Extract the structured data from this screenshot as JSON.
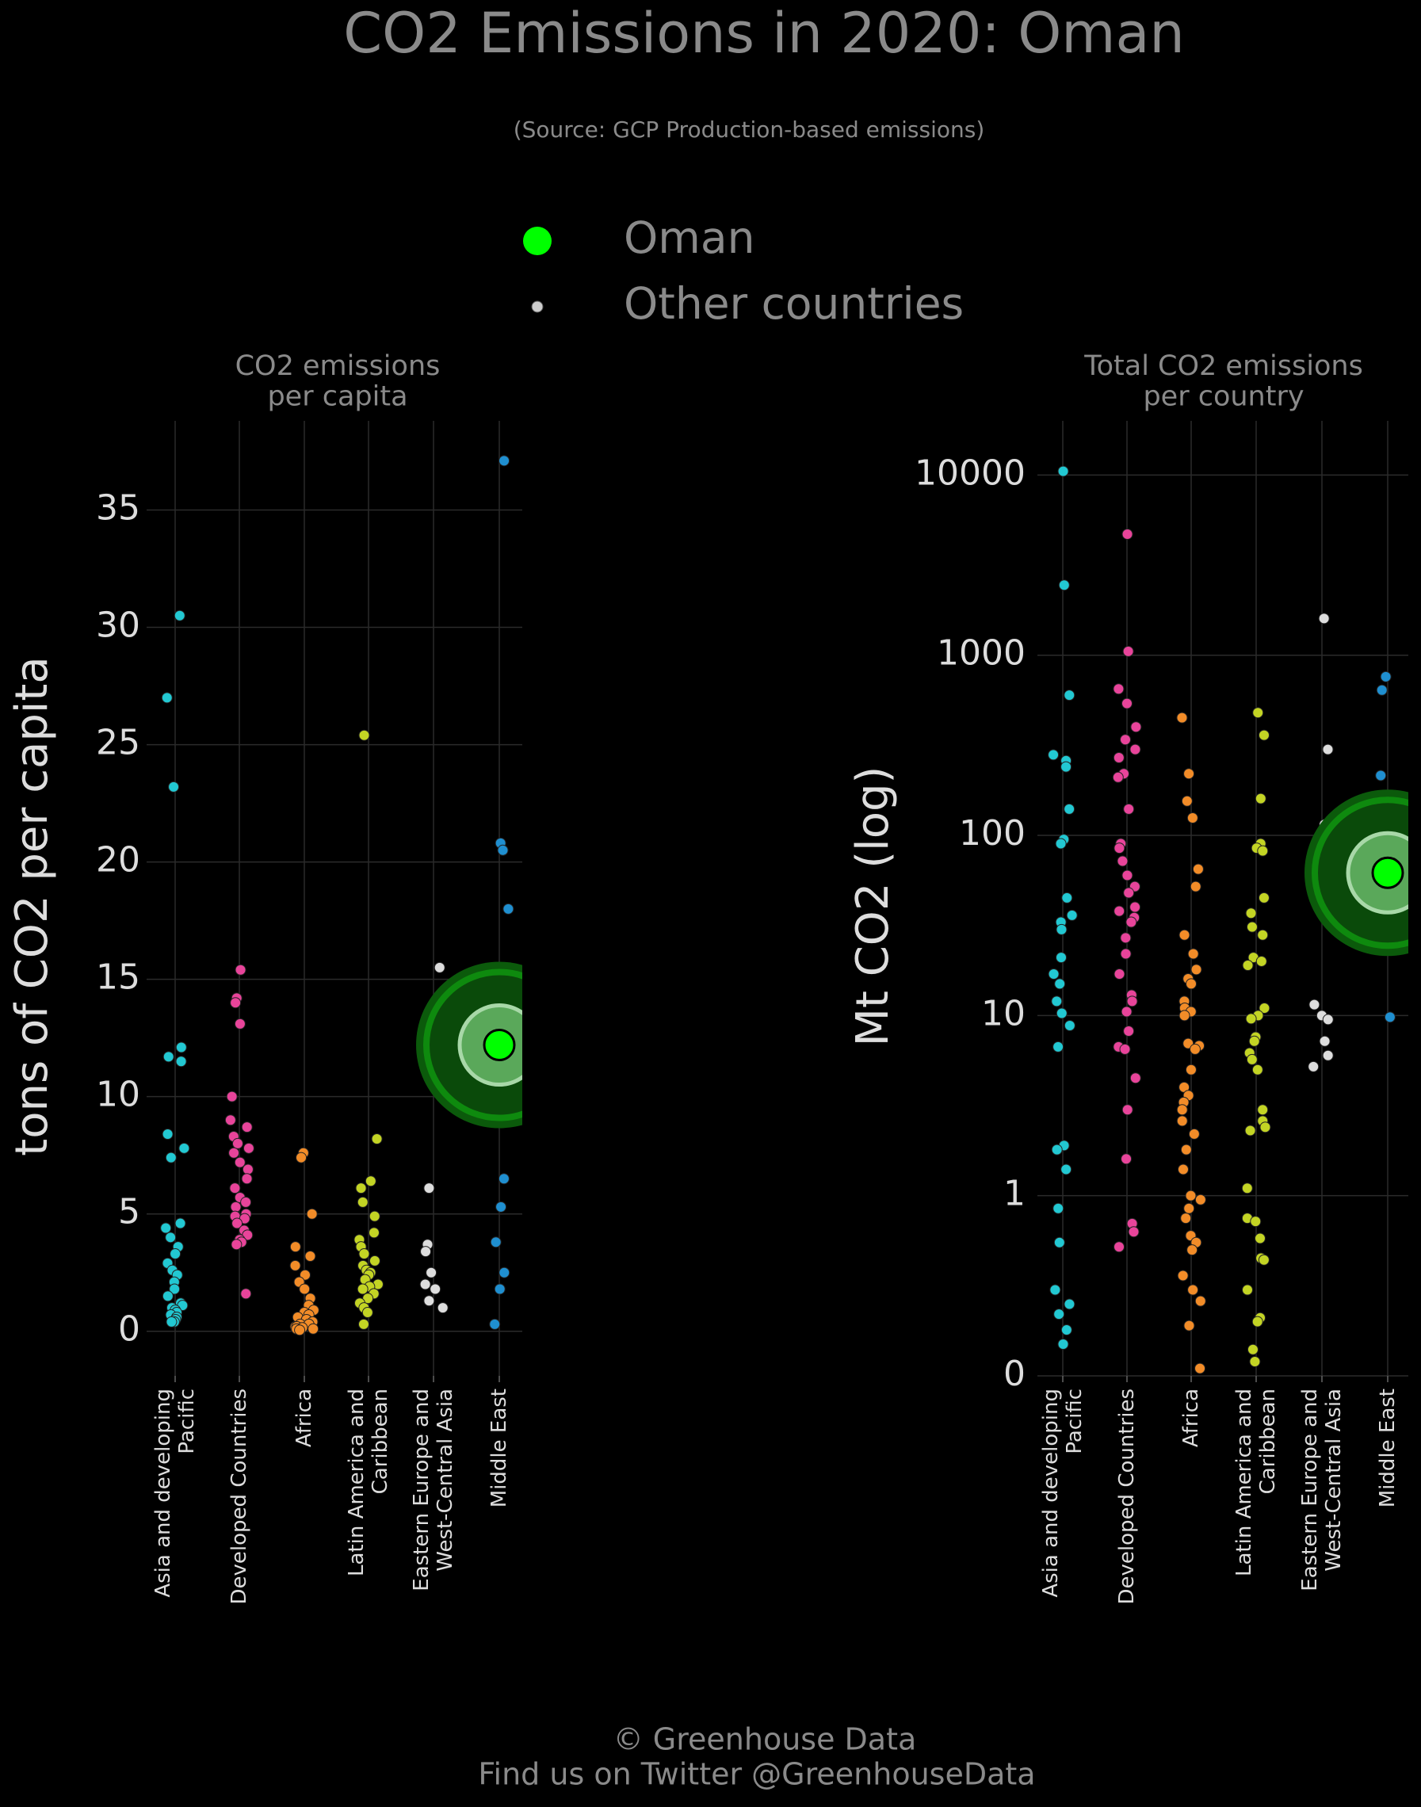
{
  "title": "CO2 Emissions in 2020: Oman",
  "subtitle": "(Source: GCP Production-based emissions)",
  "legend": [
    {
      "name": "Oman",
      "color": "#00ff00"
    },
    {
      "name": "Other countries",
      "color": "#cccccc"
    }
  ],
  "credit": [
    "© Greenhouse Data",
    "Find us on Twitter @GreenhouseData"
  ],
  "chart_data": [
    {
      "type": "strip",
      "title": "CO2 emissions\nper capita",
      "ylabel": "tons of CO2 per capita",
      "categories": [
        "Asia and developing\nPacific",
        "Developed Countries",
        "Africa",
        "Latin America and\nCaribbean",
        "Eastern Europe and\nWest-Central Asia",
        "Middle East"
      ],
      "colors": [
        "#22c8d2",
        "#e8449a",
        "#f28c28",
        "#c3d424",
        "#dddddd",
        "#1f8fd0"
      ],
      "values": [
        [
          30.5,
          27,
          23.2,
          12.1,
          11.7,
          11.5,
          8.4,
          7.8,
          7.4,
          4.6,
          4.4,
          4.0,
          3.6,
          3.3,
          2.9,
          2.6,
          2.4,
          2.1,
          1.8,
          1.5,
          1.2,
          1.1,
          1.0,
          0.9,
          0.8,
          0.7,
          0.6,
          0.5,
          0.4,
          0.4
        ],
        [
          15.4,
          14.2,
          14.0,
          13.1,
          10.0,
          9.0,
          8.7,
          8.3,
          8.0,
          7.8,
          7.6,
          7.2,
          6.9,
          6.5,
          6.1,
          5.7,
          5.5,
          5.3,
          5.0,
          4.9,
          4.8,
          4.6,
          4.3,
          4.1,
          3.9,
          3.8,
          3.7,
          1.6
        ],
        [
          7.6,
          7.4,
          5.0,
          3.6,
          3.2,
          2.8,
          2.4,
          2.1,
          1.8,
          1.4,
          1.1,
          0.9,
          0.8,
          0.7,
          0.6,
          0.5,
          0.4,
          0.3,
          0.3,
          0.2,
          0.2,
          0.15,
          0.1,
          0.1,
          0.05
        ],
        [
          25.4,
          8.2,
          6.4,
          6.1,
          5.5,
          4.9,
          4.2,
          3.9,
          3.6,
          3.3,
          3.0,
          2.8,
          2.6,
          2.5,
          2.4,
          2.2,
          2.0,
          1.9,
          1.8,
          1.6,
          1.4,
          1.2,
          1.0,
          0.8,
          0.3
        ],
        [
          15.5,
          12.5,
          10.8,
          6.1,
          3.7,
          3.4,
          2.5,
          2.0,
          1.8,
          1.3,
          1.0
        ],
        [
          37.1,
          20.8,
          20.5,
          18.0,
          15.2,
          8.9,
          6.5,
          5.3,
          3.8,
          2.5,
          1.8,
          0.3
        ]
      ],
      "highlight": {
        "name": "Oman",
        "category": 5,
        "value": 12.2
      },
      "ylim": [
        -1.9,
        38.8
      ],
      "yticks": [
        0,
        5,
        10,
        15,
        20,
        25,
        30,
        35
      ],
      "log": false,
      "grid": true
    },
    {
      "type": "strip",
      "title": "Total CO2 emissions\nper country",
      "ylabel": "Mt CO2 (log)",
      "categories": [
        "Asia and developing\nPacific",
        "Developed Countries",
        "Africa",
        "Latin America and\nCaribbean",
        "Eastern Europe and\nWest-Central Asia",
        "Middle East"
      ],
      "colors": [
        "#22c8d2",
        "#e8449a",
        "#f28c28",
        "#c3d424",
        "#dddddd",
        "#1f8fd0"
      ],
      "values": [
        [
          10500,
          2450,
          600,
          280,
          260,
          240,
          140,
          95,
          90,
          45,
          36,
          33,
          30,
          21,
          17,
          15,
          12,
          10.3,
          8.8,
          6.7,
          1.9,
          1.8,
          1.4,
          0.85,
          0.55,
          0.3,
          0.25,
          0.22,
          0.18,
          0.15
        ],
        [
          4700,
          1050,
          650,
          540,
          400,
          340,
          300,
          270,
          220,
          210,
          140,
          90,
          85,
          72,
          60,
          52,
          48,
          40,
          38,
          35,
          33,
          27,
          22,
          17,
          13,
          12,
          10.5,
          8.2,
          6.7,
          6.5,
          4.5,
          3.0,
          1.6,
          0.7,
          0.63,
          0.52
        ],
        [
          450,
          220,
          155,
          125,
          65,
          52,
          28,
          22,
          18,
          16,
          15,
          12,
          11,
          10.5,
          10,
          7,
          6.8,
          6.5,
          5,
          4,
          3.6,
          3.3,
          3,
          2.6,
          2.2,
          1.8,
          1.4,
          1.0,
          0.95,
          0.85,
          0.75,
          0.6,
          0.55,
          0.5,
          0.36,
          0.3,
          0.26,
          0.19,
          0.11
        ],
        [
          480,
          360,
          160,
          90,
          85,
          82,
          45,
          37,
          31,
          28,
          21,
          20,
          19,
          11,
          10,
          9.6,
          7.6,
          7.2,
          6.2,
          5.7,
          5.0,
          3.0,
          2.6,
          2.4,
          2.3,
          1.1,
          0.75,
          0.72,
          0.58,
          0.45,
          0.44,
          0.3,
          0.21,
          0.2,
          0.14,
          0.12
        ],
        [
          1600,
          300,
          115,
          77,
          58,
          38,
          11.5,
          10,
          9.5,
          7.2,
          6,
          5.2
        ],
        [
          760,
          640,
          215,
          150,
          110,
          90,
          36,
          30,
          27,
          26,
          9.8
        ]
      ],
      "highlight": {
        "name": "Oman",
        "category": 5,
        "value": 62
      },
      "ylim": [
        0.1,
        20000
      ],
      "yticks": [
        {
          "value": 0.1,
          "label": "0"
        },
        1,
        10,
        100,
        1000,
        10000
      ],
      "log": true,
      "grid": true
    }
  ]
}
